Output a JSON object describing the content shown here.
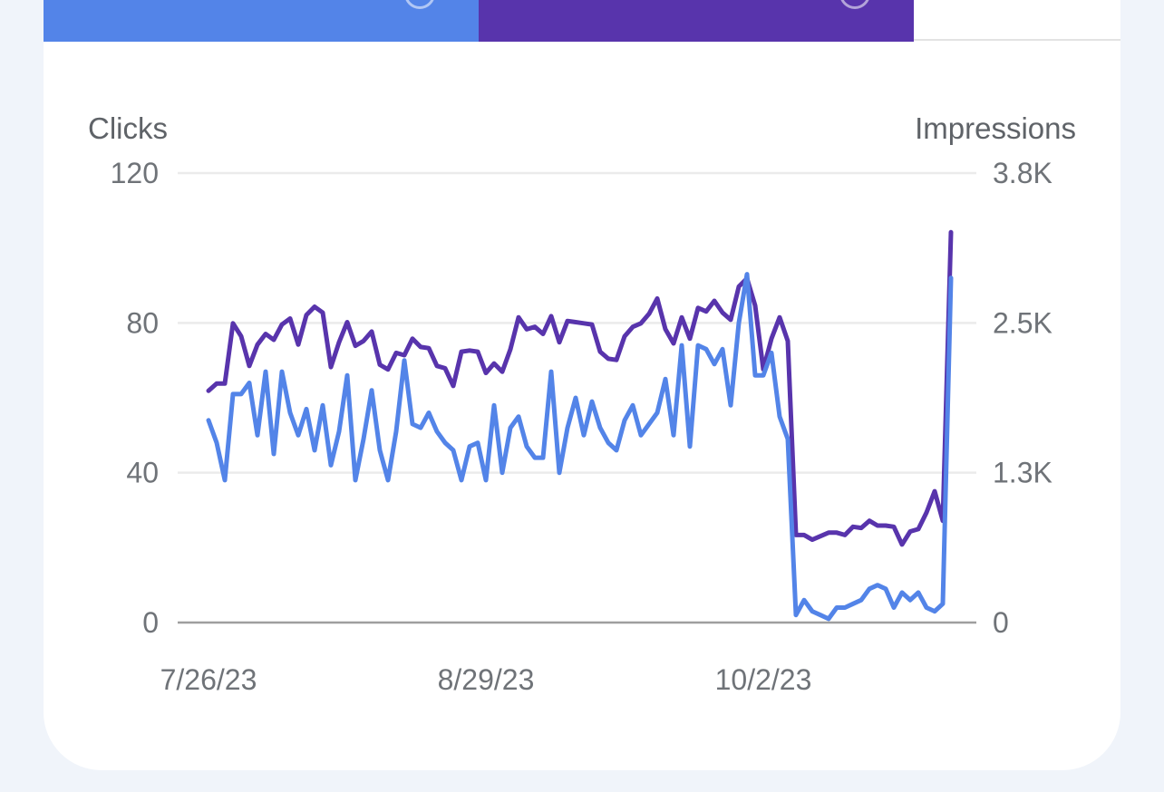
{
  "colors": {
    "clicks": "#5384E8",
    "impressions": "#5834AC",
    "gridline": "#ebebeb",
    "baseline": "#9e9e9e",
    "text": "#5f6368"
  },
  "tabs": [
    {
      "id": "clicks",
      "icon": "circle-check-icon"
    },
    {
      "id": "impressions",
      "icon": "circle-check-icon"
    }
  ],
  "chart_data": {
    "type": "line",
    "title": "",
    "y_left_label": "Clicks",
    "y_right_label": "Impressions",
    "y_left_ticks": [
      "0",
      "40",
      "80",
      "120"
    ],
    "y_right_ticks": [
      "0",
      "1.3K",
      "2.5K",
      "3.8K"
    ],
    "ylim_left": [
      0,
      120
    ],
    "ylim_right": [
      0,
      3800
    ],
    "x_tick_labels": [
      "7/26/23",
      "8/29/23",
      "10/2/23"
    ],
    "x_tick_index": [
      0,
      34,
      68
    ],
    "grid": true,
    "legend": "none",
    "series": [
      {
        "name": "Clicks",
        "axis": "left",
        "values": [
          54,
          48,
          38,
          61,
          61,
          64,
          50,
          67,
          45,
          67,
          56,
          50,
          57,
          46,
          58,
          42,
          51,
          66,
          38,
          49,
          62,
          46,
          38,
          51,
          70,
          53,
          52,
          56,
          51,
          48,
          46,
          38,
          47,
          48,
          38,
          58,
          40,
          52,
          55,
          47,
          44,
          44,
          67,
          40,
          52,
          60,
          50,
          59,
          52,
          48,
          46,
          54,
          58,
          50,
          53,
          56,
          65,
          50,
          74,
          47,
          74,
          73,
          69,
          73,
          58,
          80,
          93,
          66,
          66,
          72,
          55,
          49,
          2,
          6,
          3,
          2,
          1,
          4,
          4,
          5,
          6,
          9,
          10,
          9,
          4,
          8,
          6,
          8,
          4,
          3,
          5,
          92
        ]
      },
      {
        "name": "Impressions",
        "axis": "right",
        "values": [
          1960,
          2020,
          2020,
          2530,
          2420,
          2170,
          2350,
          2440,
          2390,
          2520,
          2570,
          2350,
          2600,
          2670,
          2620,
          2160,
          2370,
          2540,
          2340,
          2380,
          2460,
          2180,
          2140,
          2280,
          2260,
          2400,
          2330,
          2320,
          2170,
          2150,
          2000,
          2290,
          2300,
          2290,
          2110,
          2190,
          2120,
          2310,
          2580,
          2480,
          2500,
          2440,
          2590,
          2370,
          2550,
          2540,
          2530,
          2520,
          2290,
          2230,
          2220,
          2420,
          2500,
          2530,
          2610,
          2740,
          2480,
          2360,
          2580,
          2400,
          2660,
          2630,
          2720,
          2620,
          2560,
          2840,
          2910,
          2680,
          2140,
          2400,
          2580,
          2380,
          740,
          740,
          700,
          730,
          760,
          760,
          740,
          810,
          800,
          860,
          820,
          820,
          810,
          660,
          770,
          790,
          930,
          1110,
          860,
          3300
        ]
      }
    ]
  }
}
